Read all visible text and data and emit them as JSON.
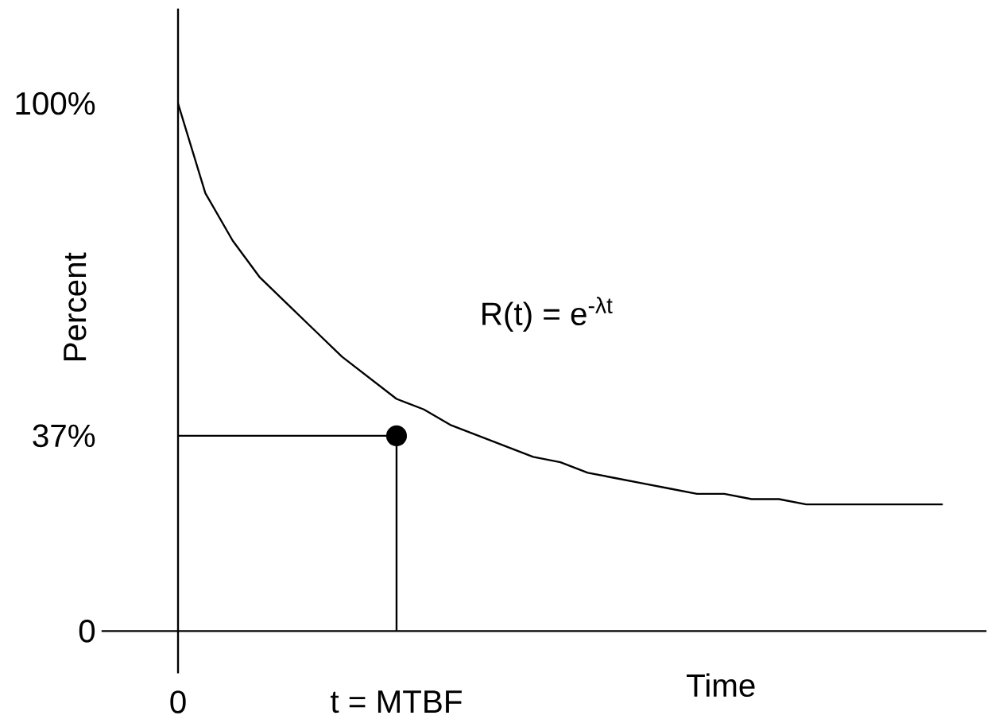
{
  "chart_data": {
    "type": "line",
    "xlabel": "Time",
    "ylabel": "Percent",
    "annotations": [
      "R(t) = e$^{-λt}$"
    ],
    "categories": [
      "0",
      null,
      null,
      null,
      null,
      null,
      null,
      null,
      "t = MTBF",
      null,
      null,
      null,
      null,
      null,
      null,
      null,
      null,
      null,
      null,
      null,
      null,
      null,
      null,
      null,
      null,
      null,
      null,
      null,
      null
    ],
    "ylim": [
      -8,
      118
    ],
    "yticks": [
      0,
      {
        "value": 37,
        "label": "37%"
      },
      {
        "value": 100,
        "label": "100%"
      }
    ],
    "grid": false,
    "series": [
      {
        "color": "#000000",
        "line_style": "solid",
        "marker": "none",
        "values": [
          100,
          83,
          74,
          67,
          62,
          57,
          52,
          48,
          44,
          42,
          39,
          37,
          35,
          33,
          32,
          30,
          29,
          28,
          27,
          26,
          26,
          25,
          25,
          24,
          24,
          24,
          24,
          24,
          24
        ]
      },
      {
        "type": "line",
        "color": "#000000",
        "line_style": "solid",
        "marker": "none",
        "values": [
          37,
          37,
          37,
          37,
          37,
          37,
          37,
          37,
          37,
          null,
          null,
          null,
          null,
          null,
          null,
          null,
          null,
          null,
          null,
          null,
          null,
          null,
          null,
          null,
          null,
          null,
          null,
          null,
          null
        ]
      },
      {
        "type": "lollipop",
        "color": "#000000",
        "marker": "circle",
        "values": [
          null,
          null,
          null,
          null,
          null,
          null,
          null,
          null,
          37,
          null,
          null,
          null,
          null,
          null,
          null,
          null,
          null,
          null,
          null,
          null,
          null,
          null,
          null,
          null,
          null,
          null,
          null,
          null,
          null
        ]
      }
    ]
  }
}
